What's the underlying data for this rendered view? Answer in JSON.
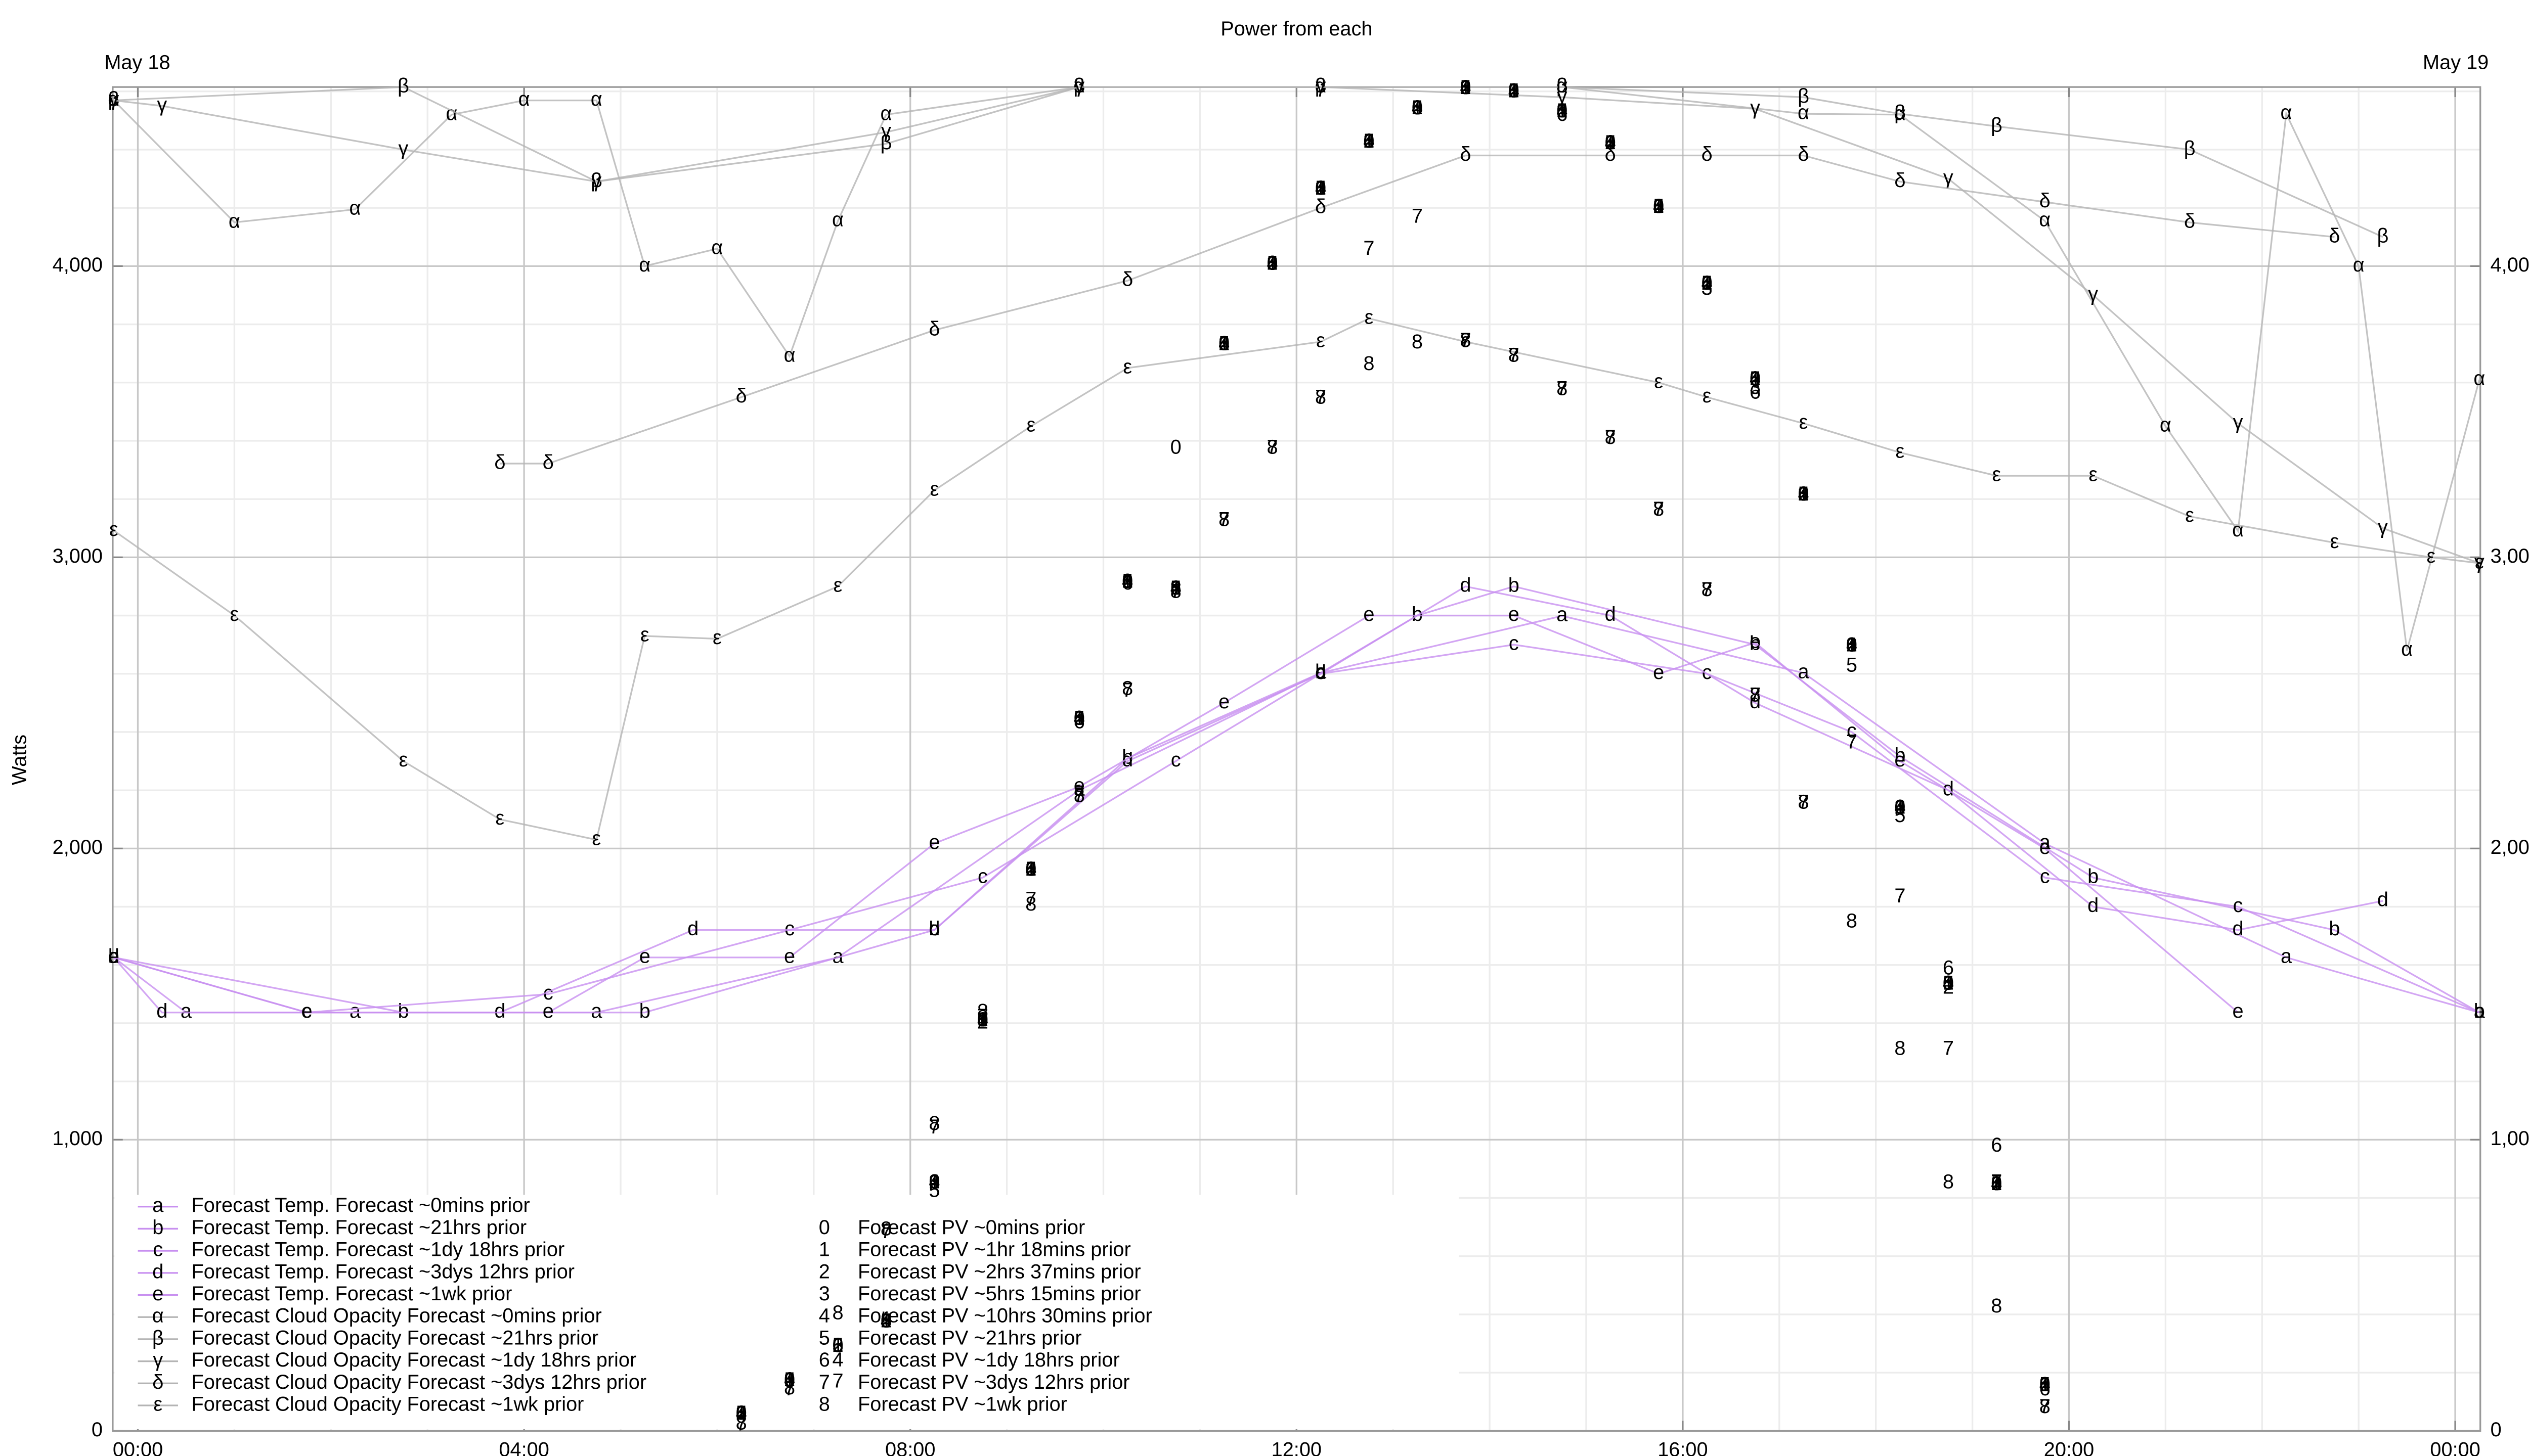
{
  "chart_data": {
    "type": "line",
    "title": "Power from each",
    "ylabel": "Watts",
    "date_labels": [
      "May 18",
      "May 19"
    ],
    "xlim": [
      -0.26,
      24.26
    ],
    "ylim": [
      0,
      4615
    ],
    "xticks": [
      {
        "value": 0,
        "label": "00:00"
      },
      {
        "value": 4,
        "label": "04:00"
      },
      {
        "value": 8,
        "label": "08:00"
      },
      {
        "value": 12,
        "label": "12:00"
      },
      {
        "value": 16,
        "label": "16:00"
      },
      {
        "value": 20,
        "label": "20:00"
      },
      {
        "value": 24,
        "label": "00:00"
      }
    ],
    "yticks": [
      0,
      {
        "value": 1000,
        "label": "1,000"
      },
      {
        "value": 2000,
        "label": "2,000"
      },
      {
        "value": 3000,
        "label": "3,000"
      },
      {
        "value": 4000,
        "label": "4,000"
      }
    ],
    "grid": true,
    "minor_grid": true,
    "legend": "lower left",
    "series": [
      {
        "name": "Forecast Temp. Forecast ~0mins prior",
        "marker": "a",
        "color": "#c890f0",
        "style": "lines",
        "x": [
          -0.25,
          0.5,
          2.25,
          4.75,
          7.25,
          9.75,
          12.25,
          14.75,
          17.25,
          19.75,
          22.25,
          24.25
        ],
        "values": [
          1626,
          1437,
          1437,
          1437,
          1626,
          2200,
          2603,
          2799,
          2603,
          2017,
          1626,
          1437
        ]
      },
      {
        "name": "Forecast Temp. Forecast ~21hrs prior",
        "marker": "b",
        "color": "#c890f0",
        "style": "lines",
        "x": [
          -0.25,
          2.75,
          5.25,
          8.25,
          10.25,
          12.25,
          13.25,
          14.25,
          16.75,
          18.25,
          20.25,
          22.75,
          24.25
        ],
        "values": [
          1626,
          1437,
          1437,
          1720,
          2310,
          2603,
          2800,
          2900,
          2700,
          2316,
          1900,
          1720,
          1437
        ]
      },
      {
        "name": "Forecast Temp. Forecast ~1dy 18hrs prior",
        "marker": "c",
        "color": "#c890f0",
        "style": "lines",
        "x": [
          -0.25,
          1.75,
          4.25,
          6.75,
          8.75,
          10.75,
          12.25,
          14.25,
          16.25,
          17.75,
          19.75,
          21.75,
          24.25
        ],
        "values": [
          1626,
          1437,
          1500,
          1720,
          1900,
          2300,
          2600,
          2700,
          2600,
          2400,
          1900,
          1800,
          1437
        ]
      },
      {
        "name": "Forecast Temp. Forecast ~3dys 12hrs prior",
        "marker": "d",
        "color": "#c890f0",
        "style": "lines",
        "x": [
          -0.25,
          0.25,
          3.75,
          5.75,
          8.25,
          10.25,
          12.25,
          13.75,
          15.25,
          16.75,
          18.75,
          20.25,
          21.75,
          23.25
        ],
        "values": [
          1626,
          1437,
          1437,
          1720,
          1720,
          2300,
          2600,
          2900,
          2800,
          2500,
          2200,
          1800,
          1720,
          1820
        ]
      },
      {
        "name": "Forecast Temp. Forecast ~1wk prior",
        "marker": "e",
        "color": "#c890f0",
        "style": "lines",
        "x": [
          -0.25,
          1.75,
          4.25,
          5.25,
          6.75,
          8.25,
          9.75,
          11.25,
          12.75,
          14.25,
          15.75,
          16.75,
          18.25,
          19.75,
          21.75
        ],
        "values": [
          1626,
          1437,
          1437,
          1626,
          1626,
          2017,
          2212,
          2500,
          2800,
          2800,
          2600,
          2707,
          2300,
          2000,
          1437
        ]
      },
      {
        "name": "Forecast Cloud Opacity Forecast ~0mins prior",
        "marker": "α",
        "color": "#b4b4b4",
        "style": "lines",
        "x": [
          -0.25,
          1.0,
          2.25,
          3.25,
          4.0,
          4.75,
          5.25,
          6.0,
          6.75,
          7.25,
          7.75,
          9.75,
          12.25,
          14.75,
          17.25,
          18.25,
          19.75,
          21.0,
          21.75,
          22.25,
          23.0,
          23.5,
          24.25
        ],
        "values": [
          4569,
          4150,
          4195,
          4520,
          4569,
          4569,
          4000,
          4060,
          3690,
          4155,
          4520,
          4615,
          4615,
          4615,
          4523,
          4520,
          4155,
          3450,
          3090,
          4523,
          4000,
          2680,
          3610
        ]
      },
      {
        "name": "Forecast Cloud Opacity Forecast ~21hrs prior",
        "marker": "β",
        "color": "#b4b4b4",
        "style": "lines",
        "x": [
          -0.25,
          2.75,
          4.75,
          7.75,
          9.75,
          12.25,
          14.75,
          17.25,
          18.25,
          19.25,
          21.25,
          23.25
        ],
        "values": [
          4569,
          4615,
          4290,
          4420,
          4615,
          4615,
          4615,
          4580,
          4523,
          4480,
          4400,
          4100
        ]
      },
      {
        "name": "Forecast Cloud Opacity Forecast ~1dy 18hrs prior",
        "marker": "γ",
        "color": "#b4b4b4",
        "style": "lines",
        "x": [
          -0.25,
          0.25,
          2.75,
          4.75,
          7.75,
          9.75,
          12.25,
          14.75,
          16.75,
          18.75,
          20.25,
          21.75,
          23.25,
          24.25
        ],
        "values": [
          4569,
          4550,
          4400,
          4290,
          4460,
          4615,
          4615,
          4580,
          4540,
          4300,
          3900,
          3460,
          3100,
          2980
        ]
      },
      {
        "name": "Forecast Cloud Opacity Forecast ~3dys 12hrs prior",
        "marker": "δ",
        "color": "#b4b4b4",
        "style": "lines",
        "x": [
          3.75,
          4.25,
          6.25,
          8.25,
          10.25,
          12.25,
          13.75,
          15.25,
          16.25,
          17.25,
          18.25,
          19.75,
          21.25,
          22.75
        ],
        "values": [
          3322,
          3322,
          3550,
          3780,
          3950,
          4200,
          4380,
          4380,
          4380,
          4380,
          4290,
          4220,
          4150,
          4100
        ]
      },
      {
        "name": "Forecast Cloud Opacity Forecast ~1wk prior",
        "marker": "ε",
        "color": "#b4b4b4",
        "style": "lines",
        "x": [
          -0.25,
          1.0,
          2.75,
          3.75,
          4.75,
          5.25,
          6.0,
          7.25,
          8.25,
          9.25,
          10.25,
          12.25,
          12.75,
          13.75,
          15.75,
          16.25,
          17.25,
          18.25,
          19.25,
          20.25,
          21.25,
          22.75,
          23.75,
          24.25
        ],
        "values": [
          3092,
          2800,
          2300,
          2100,
          2030,
          2730,
          2720,
          2900,
          3230,
          3450,
          3650,
          3740,
          3820,
          3740,
          3600,
          3550,
          3460,
          3360,
          3280,
          3280,
          3140,
          3050,
          3000,
          2980
        ]
      },
      {
        "name": "Forecast PV ~0mins prior",
        "marker": "0",
        "color": "#b08a00",
        "style": "points",
        "x": [
          6.25,
          6.75,
          7.25,
          7.75,
          8.25,
          8.75,
          9.25,
          9.75,
          10.25,
          10.75,
          11.25,
          11.75,
          12.25,
          12.75,
          13.25,
          13.75,
          14.25,
          14.75,
          15.25,
          15.75,
          16.25,
          16.75,
          17.25,
          17.75,
          18.25,
          18.75,
          19.25,
          19.75
        ],
        "values": [
          57,
          172,
          290,
          374,
          851,
          1408,
          1925,
          2443,
          2914,
          3374,
          3730,
          4006,
          4264,
          4425,
          4540,
          4609,
          4598,
          4529,
          4420,
          4201,
          3937,
          3609,
          3213,
          2695,
          2138,
          1534,
          845,
          155
        ]
      },
      {
        "name": "Forecast PV ~1hr 18mins prior",
        "marker": "1",
        "color": "#a88a10",
        "style": "points",
        "x": [
          6.25,
          6.75,
          7.25,
          7.75,
          8.25,
          8.75,
          9.25,
          9.75,
          10.25,
          10.75,
          11.25,
          11.75,
          12.25,
          12.75,
          13.25,
          13.75,
          14.25,
          14.75,
          15.25,
          15.75,
          16.25,
          16.75,
          17.25,
          17.75,
          18.25,
          18.75,
          19.25,
          19.75
        ],
        "values": [
          57,
          172,
          290,
          374,
          851,
          1408,
          1925,
          2443,
          2914,
          2890,
          3730,
          4006,
          4264,
          4425,
          4540,
          4609,
          4598,
          4529,
          4420,
          4201,
          3937,
          3609,
          3213,
          2695,
          2138,
          1534,
          845,
          155
        ]
      },
      {
        "name": "Forecast PV ~2hrs 37mins prior",
        "marker": "2",
        "color": "#a88020",
        "style": "points",
        "x": [
          6.25,
          6.75,
          7.25,
          7.75,
          8.25,
          8.75,
          9.25,
          9.75,
          10.25,
          10.75,
          11.25,
          11.75,
          12.25,
          12.75,
          13.25,
          13.75,
          14.25,
          14.75,
          15.25,
          15.75,
          16.25,
          16.75,
          17.25,
          17.75,
          18.25,
          18.75,
          19.25,
          19.75
        ],
        "values": [
          57,
          172,
          290,
          374,
          851,
          1400,
          1925,
          2443,
          2914,
          2890,
          3730,
          4006,
          4264,
          4425,
          4540,
          4609,
          4598,
          4529,
          4420,
          4201,
          3937,
          3609,
          3213,
          2695,
          2138,
          1520,
          845,
          155
        ]
      },
      {
        "name": "Forecast PV ~5hrs 15mins prior",
        "marker": "3",
        "color": "#a05530",
        "style": "points",
        "x": [
          6.25,
          6.75,
          7.25,
          7.75,
          8.25,
          8.75,
          9.25,
          9.75,
          10.25,
          10.75,
          11.25,
          11.75,
          12.25,
          12.75,
          13.25,
          13.75,
          14.25,
          14.75,
          15.25,
          15.75,
          16.25,
          16.75,
          17.25,
          17.75,
          18.25,
          18.75,
          19.25,
          19.75
        ],
        "values": [
          57,
          172,
          290,
          374,
          851,
          1408,
          1925,
          2443,
          2914,
          2890,
          3730,
          4006,
          4264,
          4425,
          4540,
          4609,
          4598,
          4529,
          4420,
          4201,
          3920,
          3580,
          3213,
          2695,
          2138,
          1534,
          845,
          155
        ]
      },
      {
        "name": "Forecast PV ~10hrs 30mins prior",
        "marker": "4",
        "color": "#984040",
        "style": "points",
        "x": [
          6.25,
          6.75,
          7.25,
          7.75,
          8.25,
          8.75,
          9.25,
          9.75,
          10.25,
          10.75,
          11.25,
          11.75,
          12.25,
          12.75,
          13.25,
          13.75,
          14.25,
          14.75,
          15.25,
          15.75,
          16.25,
          16.75,
          17.25,
          17.75,
          18.25,
          18.75,
          19.25,
          19.75
        ],
        "values": [
          57,
          172,
          240,
          374,
          851,
          1408,
          1925,
          2443,
          2914,
          2890,
          3730,
          4006,
          4264,
          4425,
          4540,
          4609,
          4598,
          4529,
          4420,
          4201,
          3937,
          3609,
          3213,
          2695,
          2138,
          1534,
          845,
          155
        ]
      },
      {
        "name": "Forecast PV ~21hrs prior",
        "marker": "5",
        "color": "#904048",
        "style": "points",
        "x": [
          6.25,
          6.75,
          7.25,
          7.75,
          8.25,
          8.75,
          9.25,
          9.75,
          10.25,
          10.75,
          11.25,
          11.75,
          12.25,
          12.75,
          13.25,
          13.75,
          14.25,
          14.75,
          15.25,
          15.75,
          16.25,
          16.75,
          17.25,
          17.75,
          18.25,
          18.75,
          19.25,
          19.75
        ],
        "values": [
          57,
          172,
          290,
          374,
          822,
          1408,
          1925,
          2443,
          2914,
          2890,
          3730,
          4006,
          4264,
          4425,
          4540,
          4609,
          4598,
          4529,
          4420,
          4201,
          3937,
          3609,
          3213,
          2626,
          2109,
          1534,
          845,
          155
        ]
      },
      {
        "name": "Forecast PV ~1dy 18hrs prior",
        "marker": "6",
        "color": "#883050",
        "style": "points",
        "x": [
          6.25,
          6.75,
          7.25,
          7.75,
          8.25,
          8.75,
          9.25,
          9.75,
          10.25,
          10.75,
          11.25,
          11.75,
          12.25,
          12.75,
          13.25,
          13.75,
          14.25,
          14.75,
          15.25,
          15.75,
          16.25,
          16.75,
          17.25,
          17.75,
          18.25,
          18.75,
          19.25,
          19.75
        ],
        "values": [
          57,
          172,
          290,
          374,
          851,
          1408,
          1925,
          2431,
          2908,
          2890,
          3730,
          4006,
          4264,
          4425,
          4540,
          4609,
          4598,
          4517,
          4420,
          4201,
          3937,
          3563,
          3213,
          2695,
          2138,
          1586,
          977,
          140
        ]
      },
      {
        "name": "Forecast PV ~3dys 12hrs prior",
        "marker": "7",
        "color": "#802060",
        "style": "points",
        "x": [
          6.25,
          6.75,
          7.25,
          7.75,
          8.25,
          8.75,
          9.25,
          9.75,
          10.25,
          10.75,
          11.25,
          11.75,
          12.25,
          12.75,
          13.25,
          13.75,
          14.25,
          14.75,
          15.25,
          15.75,
          16.25,
          16.75,
          17.25,
          17.75,
          18.25,
          18.75,
          19.25,
          19.75
        ],
        "values": [
          20,
          140,
          167,
          680,
          1040,
          1420,
          1822,
          2180,
          2540,
          2879,
          3126,
          3374,
          3546,
          4057,
          4167,
          3741,
          3690,
          3575,
          3408,
          3161,
          2885,
          2523,
          2155,
          2362,
          1833,
          1310,
          851,
          80
        ]
      },
      {
        "name": "Forecast PV ~1wk prior",
        "marker": "8",
        "color": "#800080",
        "style": "points",
        "x": [
          6.25,
          6.75,
          7.25,
          7.75,
          8.25,
          8.75,
          9.25,
          9.75,
          10.25,
          10.75,
          11.25,
          11.75,
          12.25,
          12.75,
          13.25,
          13.75,
          14.25,
          14.75,
          15.25,
          15.75,
          16.25,
          16.75,
          17.25,
          17.75,
          18.25,
          18.75,
          19.25,
          19.75
        ],
        "values": [
          23,
          144,
          402,
          690,
          1052,
          1437,
          1805,
          2178,
          2546,
          2879,
          3126,
          3374,
          3546,
          3661,
          3736,
          3741,
          3690,
          3575,
          3408,
          3161,
          2885,
          2523,
          2155,
          1747,
          1310,
          851,
          425,
          80
        ]
      }
    ]
  }
}
